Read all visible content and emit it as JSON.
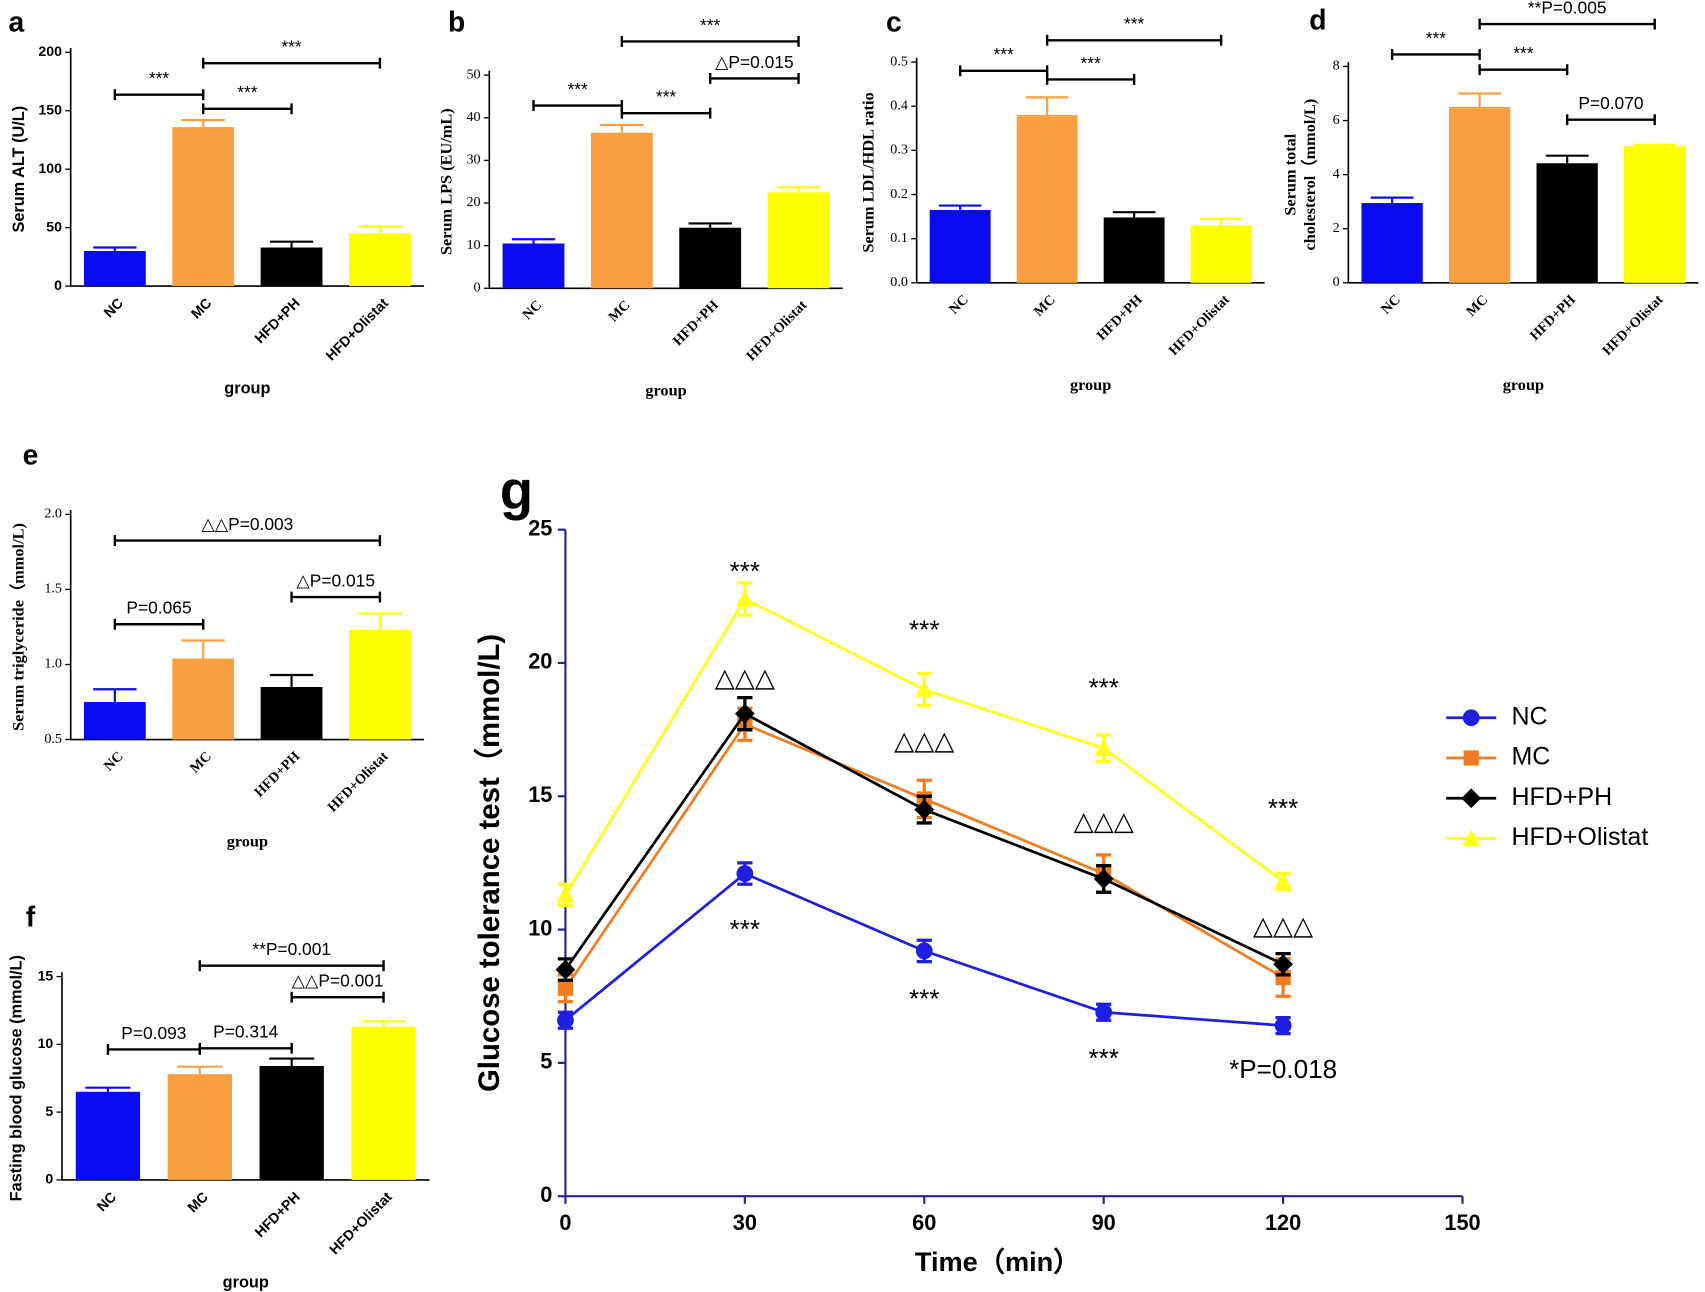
{
  "chart_data": [
    {
      "type": "bar",
      "panel_label": "a",
      "ylabel": "Serum ALT (U/L)",
      "xlabel": "group",
      "categories": [
        "NC",
        "MC",
        "HFD+PH",
        "HFD+Olistat"
      ],
      "values": [
        30,
        136,
        33,
        45
      ],
      "errors": [
        3,
        6,
        5,
        6
      ],
      "colors": [
        "#0b0bf2",
        "#f9a040",
        "#000000",
        "#ffff00"
      ],
      "ylim": [
        0,
        200
      ],
      "yticks": [
        0,
        50,
        100,
        150,
        200
      ],
      "annotations": [
        "***",
        "***",
        "***"
      ]
    },
    {
      "type": "bar",
      "panel_label": "b",
      "ylabel": "Serum LPS (EU/mL)",
      "xlabel": "group",
      "categories": [
        "NC",
        "MC",
        "HFD+PH",
        "HFD+Olistat"
      ],
      "values": [
        10.5,
        36.5,
        14.2,
        22.5
      ],
      "errors": [
        1,
        1.8,
        1,
        1.2
      ],
      "colors": [
        "#0b0bf2",
        "#f9a040",
        "#000000",
        "#ffff00"
      ],
      "ylim": [
        0,
        50
      ],
      "yticks": [
        0,
        10,
        20,
        30,
        40,
        50
      ],
      "annotations": [
        "***",
        "***",
        "△P=0.015",
        "***"
      ]
    },
    {
      "type": "bar",
      "panel_label": "c",
      "ylabel": "Serum LDL/HDL ratio",
      "xlabel": "group",
      "categories": [
        "NC",
        "MC",
        "HFD+PH",
        "HFD+Olistat"
      ],
      "values": [
        0.165,
        0.38,
        0.148,
        0.13
      ],
      "errors": [
        0.01,
        0.04,
        0.012,
        0.015
      ],
      "colors": [
        "#0b0bf2",
        "#f9a040",
        "#000000",
        "#ffff00"
      ],
      "ylim": [
        0,
        0.5
      ],
      "yticks": [
        {
          "value": 0,
          "label": "0.0"
        },
        0.1,
        0.2,
        0.3,
        0.4,
        0.5
      ],
      "annotations": [
        "***",
        "***",
        "***"
      ]
    },
    {
      "type": "bar",
      "panel_label": "d",
      "ylabel": [
        "Serum total",
        "cholesterol（mmol/L)"
      ],
      "xlabel": "group",
      "categories": [
        "NC",
        "MC",
        "HFD+PH",
        "HFD+Olistat"
      ],
      "values": [
        2.95,
        6.5,
        4.42,
        5.05
      ],
      "errors": [
        0.2,
        0.5,
        0.28,
        0.05
      ],
      "colors": [
        "#0b0bf2",
        "#f9a040",
        "#000000",
        "#ffff00"
      ],
      "ylim": [
        0,
        8
      ],
      "yticks": [
        0,
        2,
        4,
        6,
        8
      ],
      "annotations": [
        "***",
        "***",
        "P=0.070",
        "**P=0.005"
      ]
    },
    {
      "type": "bar",
      "panel_label": "e",
      "ylabel": "Serum triglyceride（mmol/L)",
      "xlabel": "group",
      "categories": [
        "NC",
        "MC",
        "HFD+PH",
        "HFD+Olistat"
      ],
      "values": [
        0.75,
        1.04,
        0.85,
        1.23
      ],
      "errors": [
        0.085,
        0.12,
        0.08,
        0.11
      ],
      "colors": [
        "#0b0bf2",
        "#f9a040",
        "#000000",
        "#ffff00"
      ],
      "ylim": [
        0.5,
        2.0
      ],
      "yticks": [
        0.5,
        {
          "value": 1,
          "label": "1.0"
        },
        1.5,
        {
          "value": 2,
          "label": "2.0"
        }
      ],
      "annotations": [
        "P=0.065",
        "△P=0.015",
        "△△P=0.003"
      ]
    },
    {
      "type": "bar",
      "panel_label": "f",
      "ylabel": "Fasting blood glucose (mmol/L)",
      "xlabel": "group",
      "categories": [
        "NC",
        "MC",
        "HFD+PH",
        "HFD+Olistat"
      ],
      "values": [
        6.5,
        7.8,
        8.4,
        11.3
      ],
      "errors": [
        0.3,
        0.55,
        0.55,
        0.4
      ],
      "colors": [
        "#0b0bf2",
        "#f9a040",
        "#000000",
        "#ffff00"
      ],
      "ylim": [
        0,
        15
      ],
      "yticks": [
        0,
        5,
        10,
        15
      ],
      "annotations": [
        "P=0.093",
        "P=0.314",
        "△△P=0.001",
        "**P=0.001"
      ]
    },
    {
      "type": "line",
      "panel_label": "g",
      "ylabel": "Glucose tolerance test（mmol/L)",
      "xlabel": "Time（min）",
      "x": [
        0,
        30,
        60,
        90,
        120
      ],
      "xlim": [
        0,
        150
      ],
      "xticks": [
        0,
        30,
        60,
        90,
        120,
        150
      ],
      "ylim": [
        0,
        25
      ],
      "yticks": [
        0,
        5,
        10,
        15,
        20,
        25
      ],
      "legend": "right",
      "series": [
        {
          "name": "NC",
          "color": "#1f1fe0",
          "marker": "circle",
          "values": [
            6.6,
            12.1,
            9.2,
            6.9,
            6.4
          ],
          "errors": [
            0.3,
            0.4,
            0.4,
            0.3,
            0.3
          ]
        },
        {
          "name": "MC",
          "color": "#f47c20",
          "marker": "square",
          "values": [
            7.8,
            17.7,
            14.9,
            12.1,
            8.2
          ],
          "errors": [
            0.5,
            0.6,
            0.7,
            0.7,
            0.7
          ]
        },
        {
          "name": "HFD+PH",
          "color": "#000000",
          "marker": "diamond",
          "values": [
            8.5,
            18.1,
            14.5,
            11.9,
            8.7
          ],
          "errors": [
            0.4,
            0.6,
            0.5,
            0.5,
            0.4
          ]
        },
        {
          "name": "HFD+Olistat",
          "color": "#ffff1a",
          "marker": "triangle",
          "values": [
            11.3,
            22.4,
            19.0,
            16.8,
            11.8
          ],
          "errors": [
            0.4,
            0.6,
            0.6,
            0.5,
            0.3
          ]
        }
      ],
      "annotations": [
        "***",
        "***",
        "***",
        "***",
        "△△△",
        "△△△",
        "△△△",
        "△△△",
        "***",
        "***",
        "***",
        "*P=0.018"
      ]
    }
  ]
}
